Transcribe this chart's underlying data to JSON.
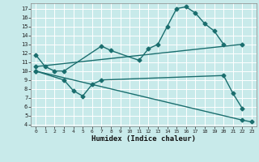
{
  "xlabel": "Humidex (Indice chaleur)",
  "bg_color": "#c8eaea",
  "grid_color": "#b0d8d8",
  "line_color": "#1a6e6e",
  "xlim": [
    -0.5,
    23.5
  ],
  "ylim": [
    3.8,
    17.6
  ],
  "xticks": [
    0,
    1,
    2,
    3,
    4,
    5,
    6,
    7,
    8,
    9,
    10,
    11,
    12,
    13,
    14,
    15,
    16,
    17,
    18,
    19,
    20,
    21,
    22,
    23
  ],
  "yticks": [
    4,
    5,
    6,
    7,
    8,
    9,
    10,
    11,
    12,
    13,
    14,
    15,
    16,
    17
  ],
  "series1_x": [
    0,
    1,
    2,
    3,
    7,
    8,
    11,
    12,
    13,
    14,
    15,
    16,
    17,
    18,
    19,
    20
  ],
  "series1_y": [
    11.8,
    10.5,
    10.0,
    10.0,
    12.8,
    12.3,
    11.2,
    12.5,
    13.0,
    15.0,
    17.0,
    17.2,
    16.5,
    15.3,
    14.5,
    13.0
  ],
  "series2_x": [
    0,
    22
  ],
  "series2_y": [
    10.5,
    13.0
  ],
  "series3_x": [
    0,
    3,
    4,
    5,
    6,
    7,
    20,
    21,
    22
  ],
  "series3_y": [
    10.0,
    9.0,
    7.8,
    7.2,
    8.5,
    9.0,
    9.5,
    7.5,
    5.8
  ],
  "series4_x": [
    0,
    22,
    23
  ],
  "series4_y": [
    10.0,
    4.5,
    4.3
  ],
  "markersize": 2.5,
  "linewidth": 1.0
}
